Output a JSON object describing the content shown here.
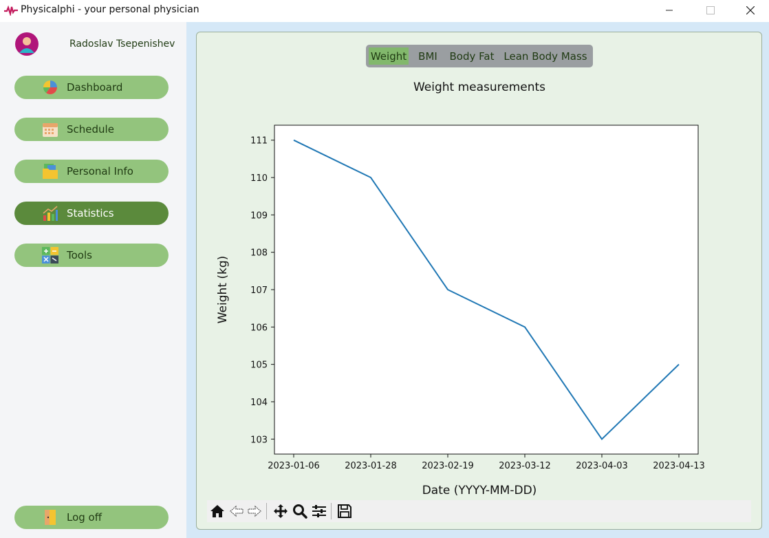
{
  "window": {
    "title": "Physicalphi - your personal physician"
  },
  "user": {
    "name": "Radoslav Tsepenishev"
  },
  "sidebar": {
    "items": [
      {
        "label": "Dashboard",
        "icon": "pie-chart-icon"
      },
      {
        "label": "Schedule",
        "icon": "calendar-icon"
      },
      {
        "label": "Personal Info",
        "icon": "folder-icon"
      },
      {
        "label": "Statistics",
        "icon": "bar-chart-icon",
        "active": true
      },
      {
        "label": "Tools",
        "icon": "calculator-icon"
      }
    ],
    "logoff": {
      "label": "Log off",
      "icon": "door-icon"
    }
  },
  "tabs": [
    {
      "label": "Weight",
      "active": true
    },
    {
      "label": "BMI"
    },
    {
      "label": "Body Fat"
    },
    {
      "label": "Lean Body Mass"
    }
  ],
  "colors": {
    "nav": "#93c47d",
    "nav_active": "#5b8a3c",
    "line": "#1f77b4"
  },
  "chart_data": {
    "type": "line",
    "title": "Weight measurements",
    "xlabel": "Date (YYYY-MM-DD)",
    "ylabel": "Weight (kg)",
    "x": [
      "2023-01-06",
      "2023-01-28",
      "2023-02-19",
      "2023-03-12",
      "2023-04-03",
      "2023-04-13"
    ],
    "y": [
      111,
      110,
      107,
      106,
      103,
      105
    ],
    "yticks": [
      103,
      104,
      105,
      106,
      107,
      108,
      109,
      110,
      111
    ],
    "ylim": [
      102.6,
      111.4
    ],
    "grid": false
  },
  "toolbar": {
    "buttons": [
      "home-icon",
      "back-arrow-icon",
      "forward-arrow-icon",
      "pan-icon",
      "zoom-icon",
      "configure-icon",
      "save-icon"
    ]
  }
}
